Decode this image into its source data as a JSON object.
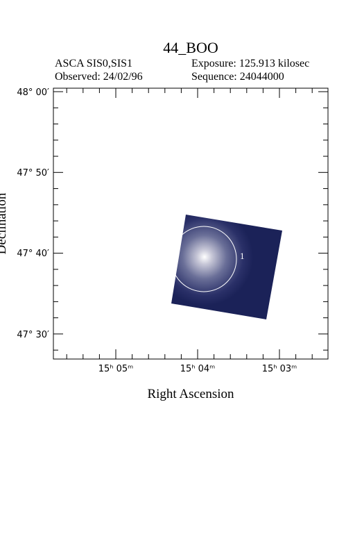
{
  "header": {
    "title": "44_BOO",
    "instrument": "ASCA SIS0,SIS1",
    "exposure": "Exposure: 125.913 kilosec",
    "observed": "Observed: 24/02/96",
    "sequence": "Sequence: 24044000"
  },
  "axes": {
    "x_label": "Right Ascension",
    "y_label": "Declination",
    "x_ticks": [
      "15ʰ 05ᵐ",
      "15ʰ 04ᵐ",
      "15ʰ 03ᵐ"
    ],
    "y_ticks": [
      "48° 00′",
      "47° 50′",
      "47° 40′",
      "47° 30′"
    ]
  },
  "sources": [
    "1"
  ]
}
